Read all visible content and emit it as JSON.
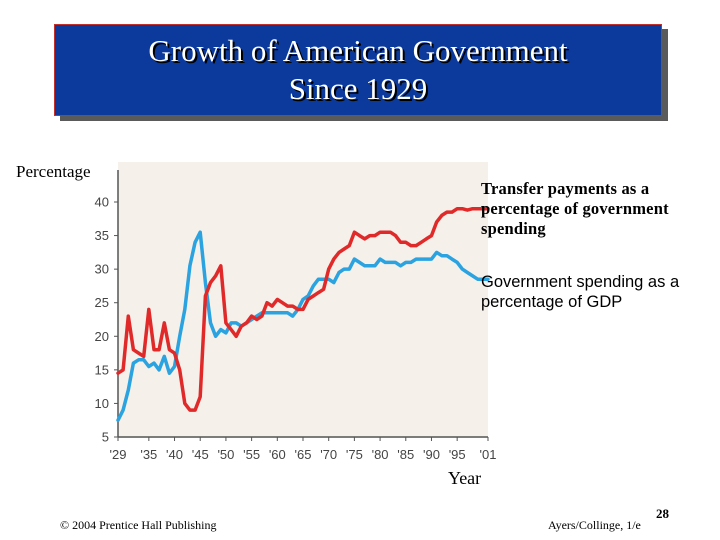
{
  "slide": {
    "title_line1": "Growth of American Government",
    "title_line2": "Since 1929",
    "footer_left": "© 2004 Prentice Hall Publishing",
    "footer_right": "Ayers/Collinge, 1/e",
    "page_number": "28"
  },
  "colors": {
    "title_bg": "#0b3a9c",
    "transfer_series": "#e02a2a",
    "gov_series": "#2aa3e0",
    "plot_bg": "#f5f0ea"
  },
  "chart_data": {
    "type": "line",
    "ylabel": "Percentage",
    "xlabel": "Year",
    "ylim": [
      5,
      42
    ],
    "xlim": [
      1929,
      2001
    ],
    "yticks": [
      5,
      10,
      15,
      20,
      25,
      30,
      35,
      40
    ],
    "xtick_labels": [
      "'29",
      "'35",
      "'40",
      "'45",
      "'50",
      "'55",
      "'60",
      "'65",
      "'70",
      "'75",
      "'80",
      "'85",
      "'90",
      "'95",
      "'01"
    ],
    "xtick_years": [
      1929,
      1935,
      1940,
      1945,
      1950,
      1955,
      1960,
      1965,
      1970,
      1975,
      1980,
      1985,
      1990,
      1995,
      2001
    ],
    "grid": false,
    "series": [
      {
        "name": "Transfer payments as a percentage of government spending",
        "color": "#e02a2a",
        "x": [
          1929,
          1930,
          1931,
          1932,
          1933,
          1934,
          1935,
          1936,
          1937,
          1938,
          1939,
          1940,
          1941,
          1942,
          1943,
          1944,
          1945,
          1946,
          1947,
          1948,
          1949,
          1950,
          1951,
          1952,
          1953,
          1954,
          1955,
          1956,
          1957,
          1958,
          1959,
          1960,
          1961,
          1962,
          1963,
          1964,
          1965,
          1966,
          1967,
          1968,
          1969,
          1970,
          1971,
          1972,
          1973,
          1974,
          1975,
          1976,
          1977,
          1978,
          1979,
          1980,
          1981,
          1982,
          1983,
          1984,
          1985,
          1986,
          1987,
          1988,
          1989,
          1990,
          1991,
          1992,
          1993,
          1994,
          1995,
          1996,
          1997,
          1998,
          1999,
          2000,
          2001
        ],
        "values": [
          14.5,
          15,
          23,
          18,
          17.5,
          17,
          24,
          18,
          18,
          22,
          18,
          17.5,
          15,
          10,
          9,
          9,
          11,
          26,
          28,
          29,
          30.5,
          22,
          21,
          20,
          21.5,
          22,
          23,
          22.5,
          23,
          25,
          24.5,
          25.5,
          25,
          24.5,
          24.5,
          24,
          24,
          25.5,
          26,
          26.5,
          27,
          30,
          31.5,
          32.5,
          33,
          33.5,
          35.5,
          35,
          34.5,
          35,
          35,
          35.5,
          35.5,
          35.5,
          35,
          34,
          34,
          33.5,
          33.5,
          34,
          34.5,
          35,
          37,
          38,
          38.5,
          38.5,
          39,
          39,
          38.8,
          39,
          39,
          39,
          39
        ]
      },
      {
        "name": "Government spending as a percentage of GDP",
        "color": "#2aa3e0",
        "x": [
          1929,
          1930,
          1931,
          1932,
          1933,
          1934,
          1935,
          1936,
          1937,
          1938,
          1939,
          1940,
          1941,
          1942,
          1943,
          1944,
          1945,
          1946,
          1947,
          1948,
          1949,
          1950,
          1951,
          1952,
          1953,
          1954,
          1955,
          1956,
          1957,
          1958,
          1959,
          1960,
          1961,
          1962,
          1963,
          1964,
          1965,
          1966,
          1967,
          1968,
          1969,
          1970,
          1971,
          1972,
          1973,
          1974,
          1975,
          1976,
          1977,
          1978,
          1979,
          1980,
          1981,
          1982,
          1983,
          1984,
          1985,
          1986,
          1987,
          1988,
          1989,
          1990,
          1991,
          1992,
          1993,
          1994,
          1995,
          1996,
          1997,
          1998,
          1999,
          2000,
          2001
        ],
        "values": [
          7.5,
          9,
          12,
          16,
          16.5,
          16.5,
          15.5,
          16,
          15,
          17,
          14.5,
          15.5,
          20,
          24,
          30.5,
          34,
          35.5,
          28,
          22,
          20,
          21,
          20.5,
          22,
          22,
          21.5,
          22,
          22.5,
          23,
          23.5,
          23.5,
          23.5,
          23.5,
          23.5,
          23.5,
          23,
          24,
          25.5,
          26,
          27.5,
          28.5,
          28.5,
          28.5,
          28,
          29.5,
          30,
          30,
          31.5,
          31,
          30.5,
          30.5,
          30.5,
          31.5,
          31,
          31,
          31,
          30.5,
          31,
          31,
          31.5,
          31.5,
          31.5,
          31.5,
          32.5,
          32,
          32,
          31.5,
          31,
          30,
          29.5,
          29,
          28.5,
          28.5,
          28.5
        ]
      }
    ]
  }
}
